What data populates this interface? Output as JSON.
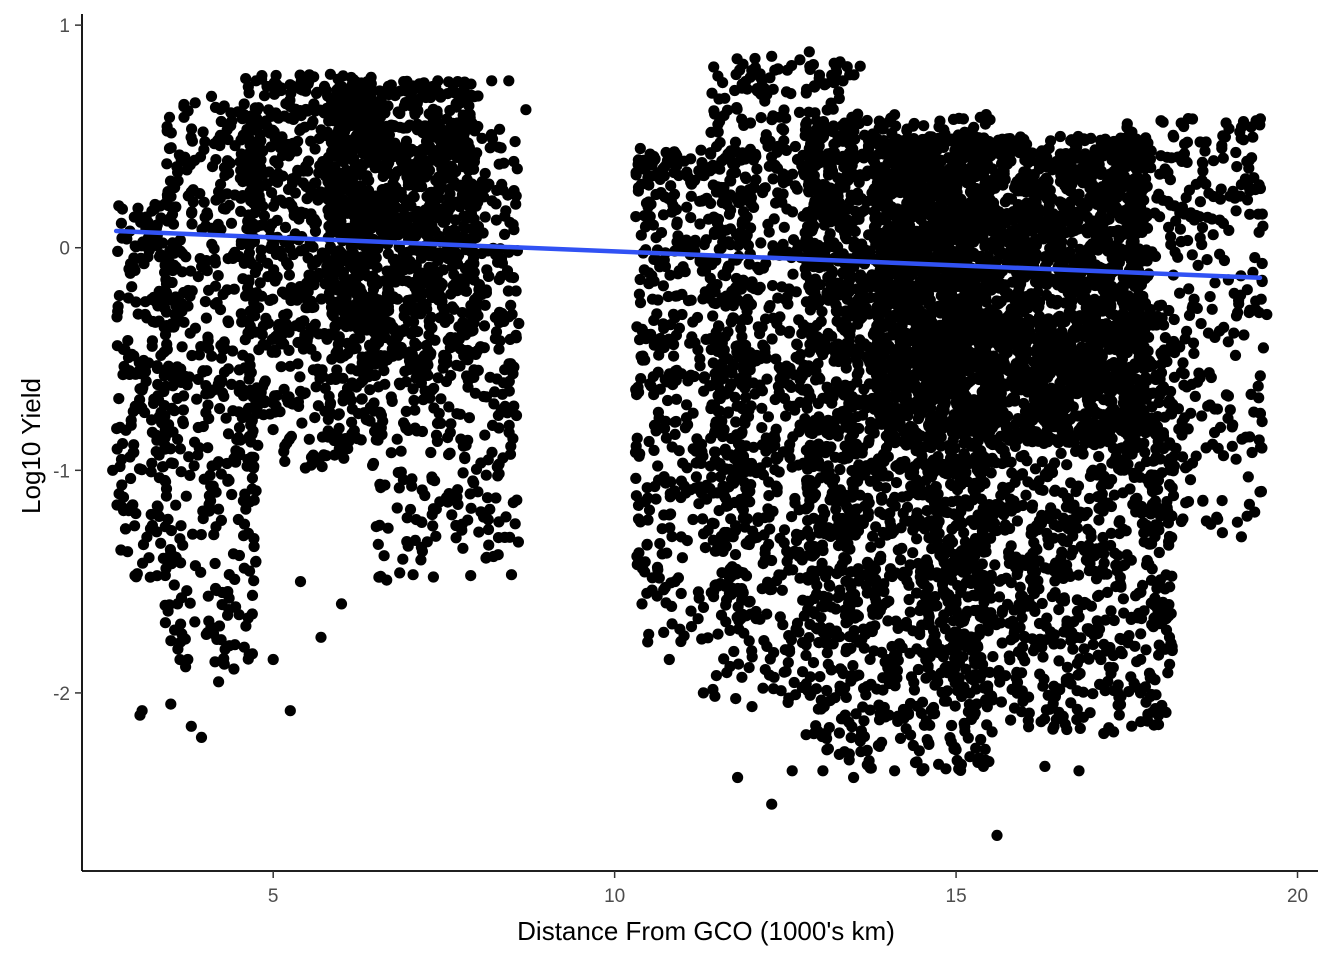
{
  "chart_data": {
    "type": "scatter",
    "title": "",
    "xlabel": "Distance From GCO (1000's km)",
    "ylabel": "Log10 Yield",
    "xlim": [
      2.2,
      20.3
    ],
    "ylim": [
      -2.8,
      1.05
    ],
    "xticks": [
      5,
      10,
      15,
      20
    ],
    "yticks": [
      -2,
      -1,
      0,
      1
    ],
    "grid": false,
    "legend": "none",
    "point_color": "#000000",
    "trend_color": "#3152F4",
    "trend_line": {
      "x": [
        2.7,
        19.45
      ],
      "y": [
        0.075,
        -0.135
      ]
    },
    "clusters": [
      {
        "x": [
          2.7,
          3.6
        ],
        "y": [
          -1.5,
          0.2
        ],
        "n": 220
      },
      {
        "x": [
          3.4,
          4.8
        ],
        "y": [
          -1.9,
          0.7
        ],
        "n": 420
      },
      {
        "x": [
          4.5,
          6.5
        ],
        "y": [
          -1.0,
          0.78
        ],
        "n": 700
      },
      {
        "x": [
          5.8,
          8.0
        ],
        "y": [
          -0.6,
          0.75
        ],
        "n": 900
      },
      {
        "x": [
          6.5,
          8.6
        ],
        "y": [
          -1.5,
          0.55
        ],
        "n": 500
      },
      {
        "x": [
          10.3,
          12.0
        ],
        "y": [
          -1.8,
          0.45
        ],
        "n": 520
      },
      {
        "x": [
          11.4,
          13.6
        ],
        "y": [
          -2.1,
          0.85
        ],
        "n": 850
      },
      {
        "x": [
          12.8,
          15.5
        ],
        "y": [
          -2.35,
          0.6
        ],
        "n": 1500
      },
      {
        "x": [
          13.8,
          17.8
        ],
        "y": [
          -0.9,
          0.5
        ],
        "n": 2400
      },
      {
        "x": [
          14.5,
          18.2
        ],
        "y": [
          -2.2,
          -0.3
        ],
        "n": 1300
      },
      {
        "x": [
          17.5,
          19.5
        ],
        "y": [
          -1.3,
          0.58
        ],
        "n": 360
      }
    ],
    "points": [
      {
        "x": 2.65,
        "y": -1.0
      },
      {
        "x": 3.05,
        "y": -2.1
      },
      {
        "x": 3.08,
        "y": -2.08
      },
      {
        "x": 3.15,
        "y": -1.3
      },
      {
        "x": 3.2,
        "y": -1.48
      },
      {
        "x": 3.5,
        "y": -2.05
      },
      {
        "x": 3.6,
        "y": -1.6
      },
      {
        "x": 3.75,
        "y": -1.85
      },
      {
        "x": 3.8,
        "y": -2.15
      },
      {
        "x": 3.95,
        "y": -2.2
      },
      {
        "x": 4.2,
        "y": -1.95
      },
      {
        "x": 4.6,
        "y": -1.7
      },
      {
        "x": 5.0,
        "y": -1.85
      },
      {
        "x": 5.25,
        "y": -2.08
      },
      {
        "x": 5.4,
        "y": -1.5
      },
      {
        "x": 5.7,
        "y": -1.75
      },
      {
        "x": 6.0,
        "y": -1.6
      },
      {
        "x": 8.2,
        "y": 0.75
      },
      {
        "x": 8.45,
        "y": 0.75
      },
      {
        "x": 8.7,
        "y": 0.62
      },
      {
        "x": 10.4,
        "y": -1.6
      },
      {
        "x": 10.8,
        "y": -1.85
      },
      {
        "x": 11.3,
        "y": -2.0
      },
      {
        "x": 11.8,
        "y": -2.38
      },
      {
        "x": 12.3,
        "y": -2.5
      },
      {
        "x": 12.6,
        "y": -2.35
      },
      {
        "x": 13.05,
        "y": -2.35
      },
      {
        "x": 13.5,
        "y": -2.38
      },
      {
        "x": 14.1,
        "y": -2.35
      },
      {
        "x": 14.5,
        "y": -2.35
      },
      {
        "x": 15.4,
        "y": -2.33
      },
      {
        "x": 15.6,
        "y": -2.64
      },
      {
        "x": 16.3,
        "y": -2.33
      },
      {
        "x": 16.8,
        "y": -2.35
      },
      {
        "x": 17.7,
        "y": -2.0
      },
      {
        "x": 17.8,
        "y": -2.12
      },
      {
        "x": 18.9,
        "y": -1.28
      },
      {
        "x": 19.1,
        "y": -0.95
      },
      {
        "x": 19.3,
        "y": -0.85
      },
      {
        "x": 19.5,
        "y": -0.45
      },
      {
        "x": 19.55,
        "y": -0.3
      },
      {
        "x": 19.3,
        "y": 0.15
      },
      {
        "x": 18.4,
        "y": 0.58
      },
      {
        "x": 12.85,
        "y": 0.88
      },
      {
        "x": 12.3,
        "y": 0.86
      }
    ]
  }
}
